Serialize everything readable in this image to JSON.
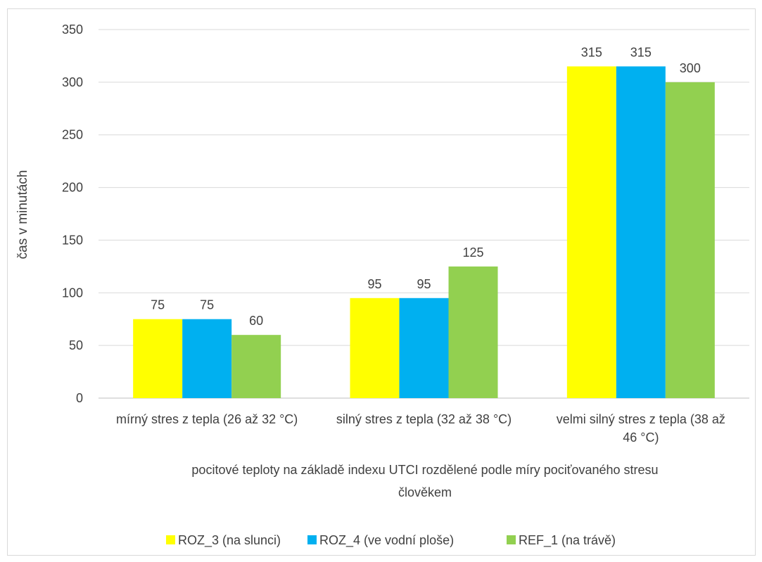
{
  "chart_data": {
    "type": "bar",
    "title": "",
    "xlabel_line1": "pocitové teploty na základě indexu UTCI rozdělené podle míry pociťovaného stresu",
    "xlabel_line2": "člověkem",
    "ylabel": "čas v minutách",
    "ylim": [
      0,
      350
    ],
    "yticks": [
      0,
      50,
      100,
      150,
      200,
      250,
      300,
      350
    ],
    "grid": true,
    "legend_position": "bottom",
    "categories": [
      [
        "mírný stres z tepla (26 až 32 °C)"
      ],
      [
        "silný stres z tepla (32 až 38 °C)"
      ],
      [
        "velmi silný stres z tepla (38 až",
        "46 °C)"
      ]
    ],
    "series": [
      {
        "name": "ROZ_3 (na slunci)",
        "color": "#ffff00",
        "values": [
          75,
          95,
          315
        ]
      },
      {
        "name": "ROZ_4 (ve vodní ploše)",
        "color": "#00b0f0",
        "values": [
          75,
          95,
          315
        ]
      },
      {
        "name": "REF_1 (na trávě)",
        "color": "#92d050",
        "values": [
          60,
          125,
          300
        ]
      }
    ]
  }
}
